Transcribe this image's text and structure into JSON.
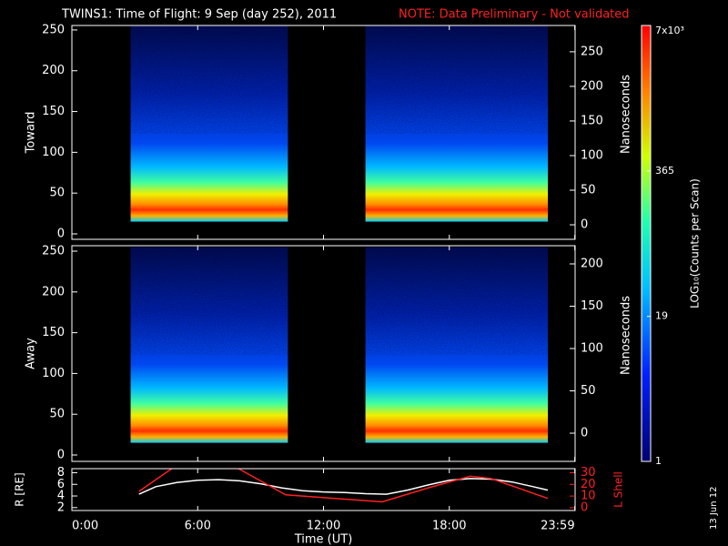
{
  "title": "TWINS1: Time of Flight:  9 Sep (day 252), 2011",
  "note": "NOTE: Data Preliminary - Not validated",
  "stamp": "13 Jun 12",
  "colorbar": {
    "label": "LOG₁₀(Counts per Scan)",
    "lim": [
      1,
      7000
    ],
    "log": true,
    "ticks": [
      {
        "value": 7000,
        "label": "7x10³"
      },
      365,
      19,
      1
    ]
  },
  "chart_data": [
    {
      "type": "heatmap",
      "ylabel": "Toward",
      "y2label": "Nanoseconds",
      "xlim": [
        0,
        24
      ],
      "ylim": [
        -6.7,
        255.5
      ],
      "yticks": [
        0,
        50,
        100,
        150,
        200,
        250
      ],
      "y2lim": [
        -21,
        288
      ],
      "y2ticks": [
        0,
        50,
        100,
        150,
        200,
        250
      ],
      "coverage": [
        [
          2.8,
          10.3
        ],
        [
          14.0,
          22.7
        ]
      ],
      "coverage_y": [
        15,
        255
      ]
    },
    {
      "type": "heatmap",
      "ylabel": "Away",
      "y2label": "Nanoseconds",
      "xlim": [
        0,
        24
      ],
      "ylim": [
        -7.8,
        256.7
      ],
      "yticks": [
        0,
        50,
        100,
        150,
        200,
        250
      ],
      "y2lim": [
        -33.3,
        221.5
      ],
      "y2ticks": [
        0,
        50,
        100,
        150,
        200
      ],
      "coverage": [
        [
          2.8,
          10.3
        ],
        [
          14.0,
          22.7
        ]
      ],
      "coverage_y": [
        15,
        255
      ]
    },
    {
      "type": "line",
      "ylabel": "R [RE]",
      "y2label": "L Shell",
      "xlabel": "Time (UT)",
      "xlim": [
        0,
        24
      ],
      "xticks": [
        {
          "value": 0,
          "label": "0:00"
        },
        {
          "value": 6,
          "label": "6:00"
        },
        {
          "value": 12,
          "label": "12:00"
        },
        {
          "value": 18,
          "label": "18:00"
        },
        {
          "value": 23.983,
          "label": "23:59"
        }
      ],
      "ylim": [
        1.5,
        8.7
      ],
      "yticks": [
        2,
        4,
        6,
        8
      ],
      "y2lim": [
        -2.4,
        33.5
      ],
      "y2ticks": [
        0,
        10,
        20,
        30
      ],
      "series": [
        {
          "name": "R",
          "color": "#ffffff",
          "x": [
            3.2,
            4,
            5,
            6,
            7,
            8,
            9,
            10,
            11,
            12,
            13,
            14,
            15,
            16,
            17,
            18,
            19,
            20,
            21,
            22,
            22.7
          ],
          "values": [
            4.3,
            5.6,
            6.3,
            6.7,
            6.8,
            6.6,
            6.1,
            5.4,
            4.9,
            4.7,
            4.6,
            4.4,
            4.3,
            5.0,
            5.9,
            6.7,
            7.0,
            6.9,
            6.4,
            5.6,
            5.0
          ]
        },
        {
          "name": "L Shell",
          "color": "#ff2020",
          "axis": "y2",
          "x": [
            3.2,
            4.8,
            6.5,
            7.9,
            10.2,
            14.8,
            17,
            19,
            20,
            22.7
          ],
          "values": [
            14,
            34,
            null,
            34,
            11,
            5,
            17,
            27,
            25,
            8
          ]
        }
      ]
    }
  ]
}
